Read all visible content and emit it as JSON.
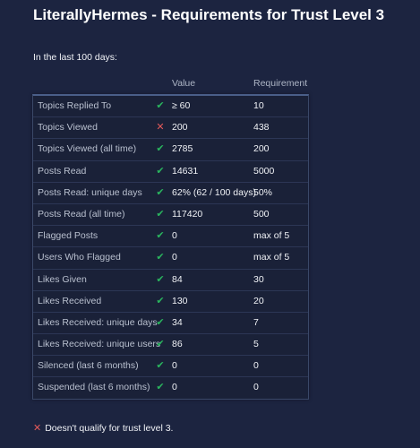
{
  "page": {
    "title": "LiterallyHermes - Requirements for Trust Level 3",
    "intro": "In the last 100 days:",
    "columns": {
      "value": "Value",
      "requirement": "Requirement"
    },
    "rows": [
      {
        "label": "Topics Replied To",
        "icon": "check-icon",
        "value": "≥ 60",
        "requirement": "10"
      },
      {
        "label": "Topics Viewed",
        "icon": "cross-icon",
        "value": "200",
        "requirement": "438"
      },
      {
        "label": "Topics Viewed (all time)",
        "icon": "check-icon",
        "value": "2785",
        "requirement": "200"
      },
      {
        "label": "Posts Read",
        "icon": "check-icon",
        "value": "14631",
        "requirement": "5000"
      },
      {
        "label": "Posts Read: unique days",
        "icon": "check-icon",
        "value": "62% (62 / 100 days)",
        "requirement": "50%"
      },
      {
        "label": "Posts Read (all time)",
        "icon": "check-icon",
        "value": "117420",
        "requirement": "500"
      },
      {
        "label": "Flagged Posts",
        "icon": "check-icon",
        "value": "0",
        "requirement": "max of 5"
      },
      {
        "label": "Users Who Flagged",
        "icon": "check-icon",
        "value": "0",
        "requirement": "max of 5"
      },
      {
        "label": "Likes Given",
        "icon": "check-icon",
        "value": "84",
        "requirement": "30"
      },
      {
        "label": "Likes Received",
        "icon": "check-icon",
        "value": "130",
        "requirement": "20"
      },
      {
        "label": "Likes Received: unique days",
        "icon": "check-icon",
        "value": "34",
        "requirement": "7"
      },
      {
        "label": "Likes Received: unique users",
        "icon": "check-icon",
        "value": "86",
        "requirement": "5"
      },
      {
        "label": "Silenced (last 6 months)",
        "icon": "check-icon",
        "value": "0",
        "requirement": "0"
      },
      {
        "label": "Suspended (last 6 months)",
        "icon": "check-icon",
        "value": "0",
        "requirement": "0"
      }
    ],
    "status": {
      "icon": "cross-icon",
      "text": "Doesn't qualify for trust level 3."
    }
  },
  "colors": {
    "background": "#1c2440",
    "check": "#2ab55e",
    "cross": "#e45a5a"
  }
}
